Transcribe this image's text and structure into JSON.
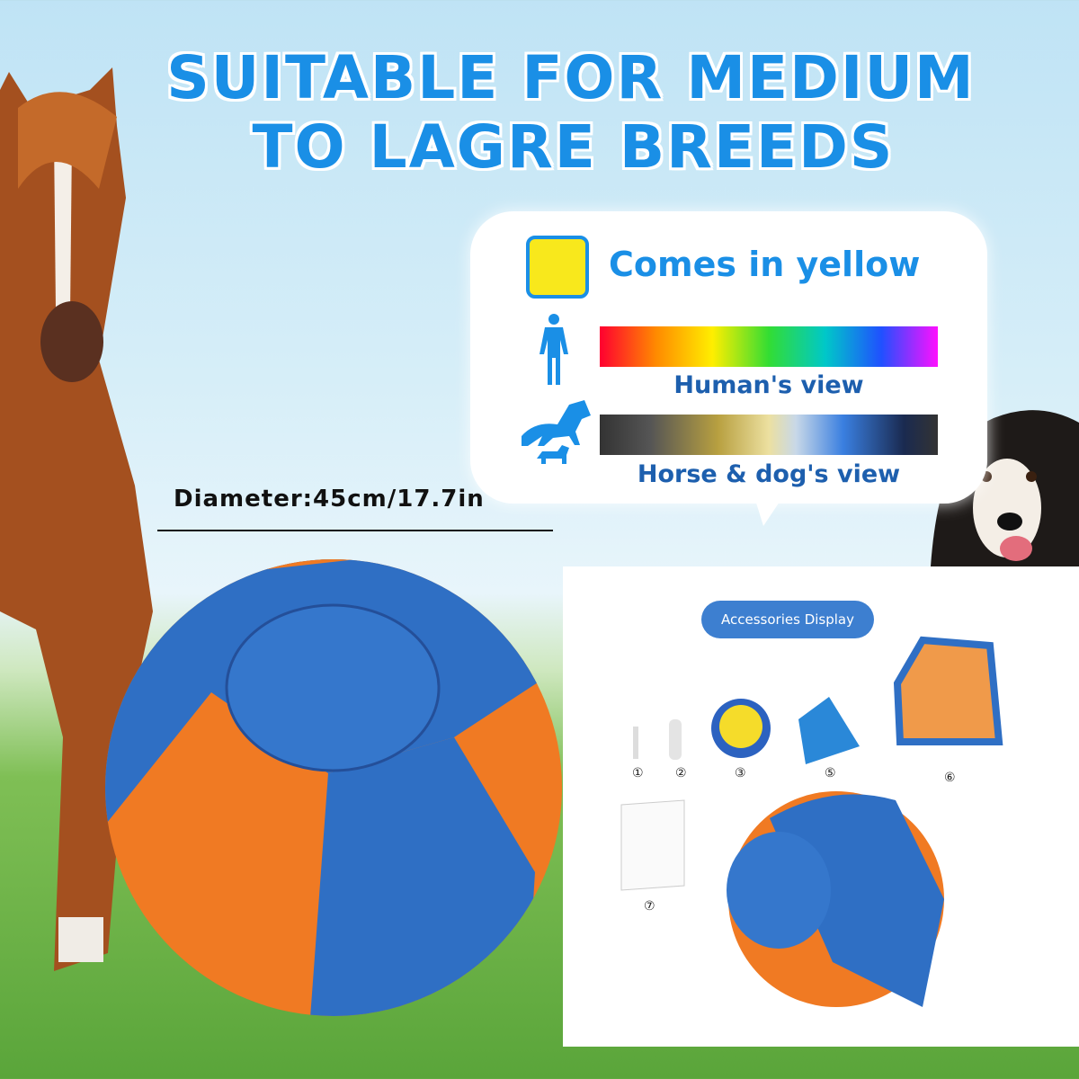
{
  "headline": {
    "line1": "SUITABLE FOR MEDIUM",
    "line2": "TO LAGRE BREEDS"
  },
  "color_info": {
    "label": "Comes in yellow",
    "swatch_color": "#f8e81c",
    "human_view": "Human's view",
    "animal_view": "Horse & dog's view"
  },
  "diameter": "Diameter:45cm/17.7in",
  "accessories": {
    "title": "Accessories Display",
    "items": [
      "①",
      "②",
      "③",
      "⑤",
      "⑥",
      "⑦"
    ]
  },
  "colors": {
    "accent": "#1a8fe6",
    "ball_blue": "#2f6fc4",
    "ball_orange": "#f07a23"
  }
}
